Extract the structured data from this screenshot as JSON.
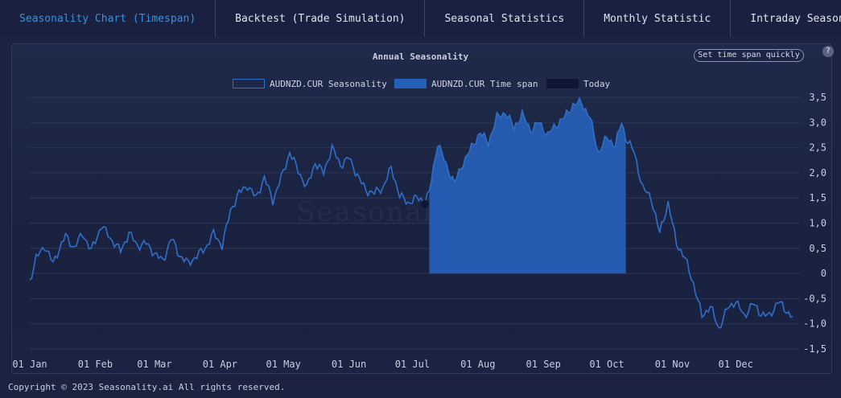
{
  "tabs": [
    {
      "label": "Seasonality Chart (Timespan)",
      "active": true
    },
    {
      "label": "Backtest (Trade Simulation)",
      "active": false
    },
    {
      "label": "Seasonal Statistics",
      "active": false
    },
    {
      "label": "Monthly Statistic",
      "active": false
    },
    {
      "label": "Intraday Seasonality Char",
      "active": false
    }
  ],
  "controls": {
    "span_button": "Set time span quickly",
    "help": "?"
  },
  "watermark": "Seasonality.ai",
  "footer": "Copyright © 2023 Seasonality.ai All rights reserved.",
  "colors": {
    "line": "#2f6fc9",
    "area": "#2560b8",
    "today": "#0e1633",
    "active_tab": "#3b8fd9"
  },
  "chart_data": {
    "type": "line",
    "title": "Annual Seasonality",
    "legend": [
      "AUDNZD.CUR Seasonality",
      "AUDNZD.CUR Time span",
      "Today"
    ],
    "legend_position": "top-center",
    "x_ticks": [
      "01 Jan",
      "01 Feb",
      "01 Mar",
      "01 Apr",
      "01 May",
      "01 Jun",
      "01 Jul",
      "01 Aug",
      "01 Sep",
      "01 Oct",
      "01 Nov",
      "01 Dec"
    ],
    "y_ticks": [
      "3,5",
      "3,0",
      "2,5",
      "2,0",
      "1,5",
      "1,0",
      "0,5",
      "0",
      "-0,5",
      "-1,0",
      "-1,5"
    ],
    "ylim": [
      -1.5,
      3.5
    ],
    "grid": true,
    "timespan": {
      "start_day": 190,
      "end_day": 283
    },
    "today_day": 188,
    "series": [
      {
        "name": "AUDNZD.CUR Seasonality",
        "x": [
          1,
          4,
          8,
          12,
          14,
          18,
          22,
          26,
          30,
          35,
          40,
          44,
          48,
          52,
          56,
          60,
          64,
          68,
          72,
          76,
          80,
          84,
          88,
          92,
          96,
          100,
          104,
          108,
          112,
          116,
          120,
          124,
          128,
          132,
          136,
          140,
          144,
          148,
          152,
          156,
          160,
          164,
          168,
          172,
          176,
          180,
          184,
          188,
          190,
          194,
          198,
          202,
          206,
          210,
          214,
          218,
          222,
          226,
          230,
          234,
          238,
          242,
          246,
          250,
          254,
          258,
          262,
          266,
          270,
          274,
          278,
          281,
          283,
          287,
          291,
          295,
          299,
          303,
          307,
          311,
          315,
          319,
          323,
          327,
          331,
          335,
          339,
          343,
          347,
          351,
          355,
          359,
          362
        ],
        "values": [
          -0.15,
          0.3,
          0.55,
          0.2,
          0.4,
          0.75,
          0.5,
          0.8,
          0.45,
          0.95,
          0.65,
          0.45,
          0.8,
          0.55,
          0.6,
          0.4,
          0.25,
          0.7,
          0.35,
          0.2,
          0.35,
          0.5,
          0.8,
          0.55,
          1.25,
          1.6,
          1.75,
          1.5,
          1.9,
          1.45,
          1.9,
          2.4,
          2.05,
          1.7,
          2.2,
          2.0,
          2.5,
          2.15,
          2.3,
          1.95,
          1.65,
          1.6,
          1.7,
          2.1,
          1.55,
          1.4,
          1.5,
          1.45,
          1.6,
          2.6,
          2.15,
          1.8,
          2.2,
          2.5,
          2.8,
          2.6,
          3.1,
          3.2,
          2.9,
          3.15,
          2.85,
          3.0,
          2.75,
          2.95,
          3.1,
          3.35,
          3.4,
          3.1,
          2.4,
          2.7,
          2.55,
          3.0,
          2.7,
          2.4,
          1.7,
          1.5,
          0.8,
          1.4,
          0.6,
          0.3,
          -0.2,
          -0.85,
          -0.65,
          -1.1,
          -0.7,
          -0.55,
          -0.85,
          -0.6,
          -0.8,
          -0.85,
          -0.55,
          -0.75,
          -0.85
        ]
      }
    ]
  }
}
